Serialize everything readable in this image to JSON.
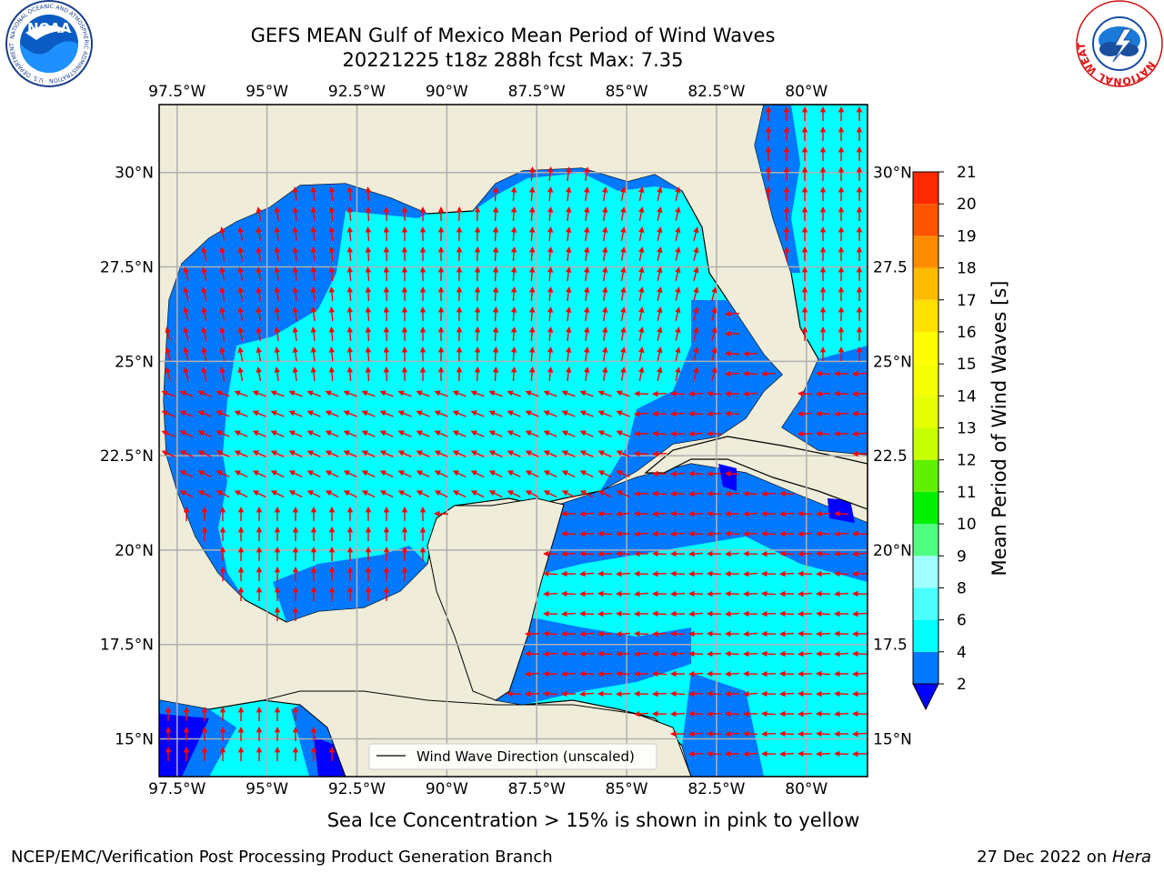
{
  "title_line1": "GEFS MEAN Gulf of Mexico Mean Period of Wind Waves",
  "title_line2": "20221225 t18z 288h fcst   Max: 7.35",
  "map": {
    "lon_range": [
      -98.0,
      -78.3
    ],
    "lat_range": [
      14.0,
      31.8
    ],
    "lon_ticks": [
      -97.5,
      -95,
      -92.5,
      -90,
      -87.5,
      -85,
      -82.5,
      -80
    ],
    "lon_tick_labels": [
      "97.5°W",
      "95°W",
      "92.5°W",
      "90°W",
      "87.5°W",
      "85°W",
      "82.5°W",
      "80°W"
    ],
    "lat_ticks": [
      15,
      17.5,
      20,
      22.5,
      25,
      27.5,
      30
    ],
    "lat_tick_labels_left": [
      "15°N",
      "17.5°N",
      "20°N",
      "22.5°N",
      "25°N",
      "27.5°N",
      "30°N"
    ],
    "lat_tick_labels_right": [
      "15°N",
      "17.5",
      "20°N",
      "22.5",
      "25°N",
      "27.5",
      "30°N"
    ],
    "legend_label": "Wind Wave Direction (unscaled)",
    "colors": {
      "land": "#efedd9",
      "ocean": "#00ffff",
      "grid": "#b0b0b0",
      "arrow": "#ff0000"
    }
  },
  "colorbar": {
    "label": "Mean Period of Wind Waves [s]",
    "levels": [
      2,
      4,
      6,
      8,
      9,
      10,
      11,
      12,
      13,
      14,
      15,
      16,
      17,
      18,
      19,
      20,
      21
    ],
    "tick_labels": [
      "2",
      "4",
      "6",
      "8",
      "9",
      "10",
      "11",
      "12",
      "13",
      "14",
      "15",
      "16",
      "17",
      "18",
      "19",
      "20",
      "21"
    ],
    "colors": [
      "#0078ff",
      "#00ffff",
      "#4cffff",
      "#a0ffff",
      "#50ff80",
      "#00f000",
      "#60f000",
      "#c8ff00",
      "#e6ff00",
      "#f5ff00",
      "#ffff00",
      "#ffe000",
      "#ffbb00",
      "#ff8c00",
      "#ff5500",
      "#ff2a00",
      "#ff0000"
    ],
    "extend_color": "#0000ff"
  },
  "subnote": "Sea Ice Concentration > 15% is shown in pink to yellow",
  "footer_left": "NCEP/EMC/Verification Post Processing Product Generation Branch",
  "footer_right_prefix": "27 Dec 2022 on ",
  "footer_right_machine": "Hera",
  "logos": {
    "left_text": "NOAA",
    "left_ring_text": "NATIONAL OCEANIC AND ATMOSPHERIC ADMINISTRATION · U.S. DEPARTMENT OF COMMERCE",
    "right_ring_text": "NATIONAL WEATHER SERVICE"
  }
}
